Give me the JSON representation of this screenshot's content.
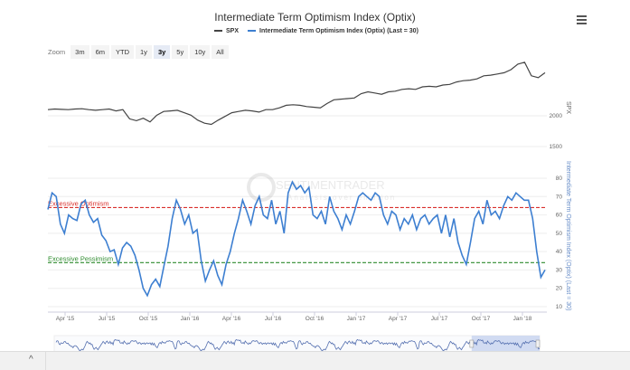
{
  "chart_data": [
    {
      "type": "line",
      "title": "Intermediate Term Optimism Index (Optix)",
      "legend": [
        "SPX",
        "Intermediate Term Optimism Index (Optix) (Last = 30)"
      ],
      "legend_placement": "top-center",
      "series": [
        {
          "name": "SPX",
          "color": "#444444",
          "axis": "SPX",
          "start": 2015.14,
          "end": 2018.11,
          "values": [
            2100,
            2110,
            2105,
            2100,
            2110,
            2115,
            2100,
            2090,
            2100,
            2110,
            2080,
            2100,
            1950,
            1920,
            1960,
            1900,
            2010,
            2070,
            2080,
            2090,
            2050,
            2010,
            1930,
            1880,
            1860,
            1930,
            1990,
            2050,
            2070,
            2090,
            2080,
            2060,
            2100,
            2100,
            2130,
            2170,
            2180,
            2170,
            2150,
            2140,
            2130,
            2200,
            2260,
            2270,
            2280,
            2290,
            2360,
            2390,
            2370,
            2350,
            2390,
            2400,
            2430,
            2440,
            2430,
            2470,
            2480,
            2470,
            2500,
            2510,
            2550,
            2570,
            2580,
            2600,
            2650,
            2660,
            2680,
            2700,
            2750,
            2840,
            2870,
            2650,
            2620,
            2700
          ]
        },
        {
          "name": "Intermediate Term Optimism Index (Optix)",
          "color": "#3d7fd1",
          "axis": "Optix",
          "start": 2015.14,
          "end": 2018.11,
          "values": [
            63,
            72,
            70,
            55,
            50,
            60,
            58,
            57,
            66,
            68,
            60,
            56,
            58,
            49,
            46,
            40,
            41,
            33,
            42,
            45,
            43,
            38,
            30,
            20,
            16,
            22,
            25,
            21,
            32,
            43,
            58,
            68,
            63,
            55,
            60,
            50,
            52,
            35,
            24,
            30,
            35,
            27,
            22,
            33,
            40,
            50,
            58,
            68,
            62,
            55,
            65,
            70,
            60,
            58,
            68,
            55,
            62,
            50,
            72,
            78,
            74,
            76,
            72,
            75,
            60,
            58,
            62,
            55,
            70,
            62,
            58,
            52,
            60,
            55,
            62,
            70,
            72,
            70,
            68,
            72,
            70,
            60,
            55,
            62,
            60,
            52,
            58,
            55,
            60,
            52,
            58,
            60,
            55,
            58,
            60,
            50,
            60,
            48,
            58,
            45,
            38,
            33,
            45,
            58,
            62,
            55,
            68,
            60,
            62,
            58,
            65,
            70,
            68,
            72,
            70,
            68,
            68,
            58,
            40,
            26,
            30
          ]
        }
      ],
      "axes": {
        "x_ticks": [
          "Apr '15",
          "Jul '15",
          "Oct '15",
          "Jan '16",
          "Apr '16",
          "Jul '16",
          "Oct '16",
          "Jan '17",
          "Apr '17",
          "Jul '17",
          "Oct '17",
          "Jan '18"
        ],
        "spx_label": "SPX",
        "spx_ticks": [
          "2000",
          "1500"
        ],
        "optix_label": "Intermediate Term Optimism Index (Optix) (Last = 30)",
        "optix_ticks": [
          "80",
          "70",
          "60",
          "50",
          "40",
          "30",
          "20",
          "10"
        ],
        "optix_range": [
          5,
          85
        ]
      },
      "bands": [
        {
          "label": "Excessive Optimism",
          "value": 64,
          "color": "#d9302c"
        },
        {
          "label": "Excessive Pessimism",
          "value": 34,
          "color": "#2e8b2e"
        }
      ],
      "watermark": {
        "line1": "SENTIMENTRADER",
        "line2": "Analysis over emotion"
      },
      "grid": true
    }
  ],
  "toolbar": {
    "zoom_label": "Zoom",
    "ranges": [
      "3m",
      "6m",
      "YTD",
      "1y",
      "3y",
      "5y",
      "10y",
      "All"
    ],
    "selected": "3y"
  },
  "navigator": {
    "selected_fraction": [
      0.86,
      1.0
    ]
  },
  "bottom": {
    "caret": "^"
  }
}
